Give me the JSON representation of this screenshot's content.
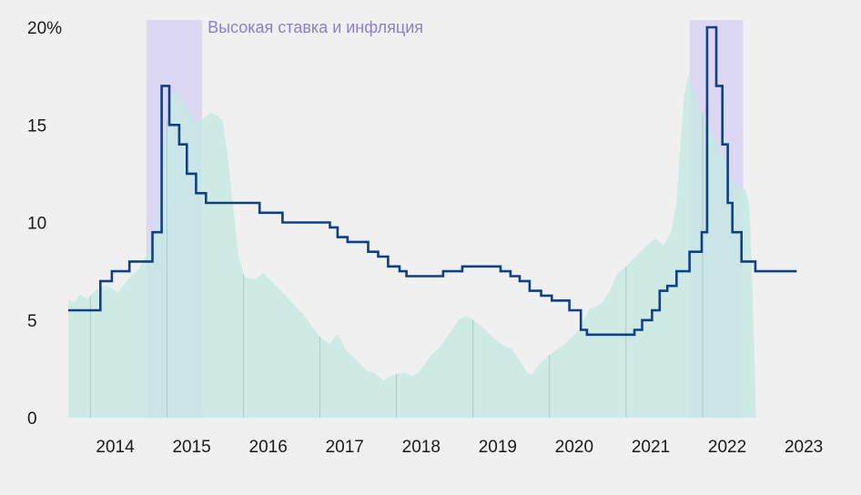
{
  "chart_data": {
    "type": "line",
    "title": "",
    "xlabel": "",
    "ylabel": "",
    "ylim": [
      0,
      20
    ],
    "xlim": [
      2013.3,
      2022.9
    ],
    "y_ticks": [
      {
        "value": 0,
        "label": "0"
      },
      {
        "value": 5,
        "label": "5"
      },
      {
        "value": 10,
        "label": "10"
      },
      {
        "value": 15,
        "label": "15"
      },
      {
        "value": 20,
        "label": "20%"
      }
    ],
    "x_ticks": [
      {
        "value": 2013.59,
        "label": "2014"
      },
      {
        "value": 2014.59,
        "label": "2015"
      },
      {
        "value": 2015.59,
        "label": "2016"
      },
      {
        "value": 2016.59,
        "label": "2017"
      },
      {
        "value": 2017.59,
        "label": "2018"
      },
      {
        "value": 2018.59,
        "label": "2019"
      },
      {
        "value": 2019.59,
        "label": "2020"
      },
      {
        "value": 2020.59,
        "label": "2021"
      },
      {
        "value": 2021.59,
        "label": "2022"
      },
      {
        "value": 2022.59,
        "label": "2023"
      }
    ],
    "grid": false,
    "highlight_color": "#dcd7f3",
    "highlight_periods": [
      {
        "start": 2014.32,
        "end": 2015.05
      },
      {
        "start": 2021.42,
        "end": 2022.12
      }
    ],
    "annotation": {
      "text": "Высокая ставка и инфляция",
      "x": 2015.05,
      "y": 20
    },
    "series": [
      {
        "kind": "area",
        "color": "#c4e9e1",
        "points": [
          [
            2013.3,
            6.1
          ],
          [
            2013.38,
            5.9
          ],
          [
            2013.45,
            6.3
          ],
          [
            2013.55,
            6.1
          ],
          [
            2013.65,
            6.5
          ],
          [
            2013.8,
            6.8
          ],
          [
            2013.95,
            6.4
          ],
          [
            2014.1,
            7.2
          ],
          [
            2014.22,
            7.6
          ],
          [
            2014.32,
            8.3
          ],
          [
            2014.42,
            9.1
          ],
          [
            2014.5,
            11.3
          ],
          [
            2014.58,
            15.0
          ],
          [
            2014.65,
            16.5
          ],
          [
            2014.72,
            16.7
          ],
          [
            2014.8,
            16.2
          ],
          [
            2014.88,
            15.6
          ],
          [
            2014.95,
            15.2
          ],
          [
            2015.05,
            15.3
          ],
          [
            2015.15,
            15.6
          ],
          [
            2015.25,
            15.5
          ],
          [
            2015.32,
            15.2
          ],
          [
            2015.38,
            13.5
          ],
          [
            2015.45,
            11.0
          ],
          [
            2015.52,
            8.4
          ],
          [
            2015.6,
            7.2
          ],
          [
            2015.75,
            7.1
          ],
          [
            2015.85,
            7.4
          ],
          [
            2015.95,
            7.0
          ],
          [
            2016.05,
            6.6
          ],
          [
            2016.2,
            6.0
          ],
          [
            2016.35,
            5.4
          ],
          [
            2016.5,
            4.6
          ],
          [
            2016.6,
            4.1
          ],
          [
            2016.72,
            3.8
          ],
          [
            2016.82,
            4.3
          ],
          [
            2016.92,
            3.5
          ],
          [
            2017.05,
            3.0
          ],
          [
            2017.2,
            2.4
          ],
          [
            2017.3,
            2.3
          ],
          [
            2017.42,
            1.9
          ],
          [
            2017.55,
            2.2
          ],
          [
            2017.7,
            2.3
          ],
          [
            2017.8,
            2.1
          ],
          [
            2017.9,
            2.4
          ],
          [
            2018.02,
            3.1
          ],
          [
            2018.15,
            3.6
          ],
          [
            2018.3,
            4.4
          ],
          [
            2018.4,
            5.0
          ],
          [
            2018.5,
            5.2
          ],
          [
            2018.6,
            5.0
          ],
          [
            2018.72,
            4.6
          ],
          [
            2018.85,
            4.1
          ],
          [
            2018.95,
            3.8
          ],
          [
            2019.1,
            3.5
          ],
          [
            2019.22,
            2.8
          ],
          [
            2019.3,
            2.3
          ],
          [
            2019.36,
            2.2
          ],
          [
            2019.45,
            2.7
          ],
          [
            2019.55,
            3.1
          ],
          [
            2019.65,
            3.4
          ],
          [
            2019.8,
            3.8
          ],
          [
            2019.95,
            4.4
          ],
          [
            2020.05,
            5.1
          ],
          [
            2020.12,
            5.6
          ],
          [
            2020.2,
            5.7
          ],
          [
            2020.28,
            5.9
          ],
          [
            2020.38,
            6.5
          ],
          [
            2020.48,
            7.4
          ],
          [
            2020.58,
            7.7
          ],
          [
            2020.68,
            8.1
          ],
          [
            2020.78,
            8.5
          ],
          [
            2020.88,
            8.9
          ],
          [
            2020.98,
            9.2
          ],
          [
            2021.08,
            8.8
          ],
          [
            2021.18,
            9.5
          ],
          [
            2021.25,
            11.0
          ],
          [
            2021.3,
            14.0
          ],
          [
            2021.35,
            16.5
          ],
          [
            2021.4,
            17.5
          ],
          [
            2021.45,
            17.0
          ],
          [
            2021.55,
            15.9
          ],
          [
            2021.65,
            15.1
          ],
          [
            2021.75,
            14.3
          ],
          [
            2021.85,
            13.4
          ],
          [
            2021.95,
            12.4
          ],
          [
            2022.02,
            11.8
          ],
          [
            2022.1,
            11.8
          ],
          [
            2022.16,
            11.6
          ],
          [
            2022.2,
            10.8
          ],
          [
            2022.24,
            7.0
          ],
          [
            2022.27,
            3.0
          ],
          [
            2022.29,
            0
          ]
        ]
      },
      {
        "kind": "step",
        "color": "#103f8a",
        "points": [
          [
            2013.3,
            5.5
          ],
          [
            2013.72,
            5.5
          ],
          [
            2013.72,
            7.0
          ],
          [
            2013.87,
            7.0
          ],
          [
            2013.87,
            7.5
          ],
          [
            2014.1,
            7.5
          ],
          [
            2014.1,
            8.0
          ],
          [
            2014.4,
            8.0
          ],
          [
            2014.4,
            9.5
          ],
          [
            2014.52,
            9.5
          ],
          [
            2014.52,
            17.0
          ],
          [
            2014.62,
            17.0
          ],
          [
            2014.62,
            15.0
          ],
          [
            2014.75,
            15.0
          ],
          [
            2014.75,
            14.0
          ],
          [
            2014.85,
            14.0
          ],
          [
            2014.85,
            12.5
          ],
          [
            2014.97,
            12.5
          ],
          [
            2014.97,
            11.5
          ],
          [
            2015.1,
            11.5
          ],
          [
            2015.1,
            11.0
          ],
          [
            2015.8,
            11.0
          ],
          [
            2015.8,
            10.5
          ],
          [
            2016.1,
            10.5
          ],
          [
            2016.1,
            10.0
          ],
          [
            2016.72,
            10.0
          ],
          [
            2016.72,
            9.75
          ],
          [
            2016.82,
            9.75
          ],
          [
            2016.82,
            9.25
          ],
          [
            2016.95,
            9.25
          ],
          [
            2016.95,
            9.0
          ],
          [
            2017.22,
            9.0
          ],
          [
            2017.22,
            8.5
          ],
          [
            2017.35,
            8.5
          ],
          [
            2017.35,
            8.25
          ],
          [
            2017.48,
            8.25
          ],
          [
            2017.48,
            7.75
          ],
          [
            2017.63,
            7.75
          ],
          [
            2017.63,
            7.5
          ],
          [
            2017.72,
            7.5
          ],
          [
            2017.72,
            7.25
          ],
          [
            2018.2,
            7.25
          ],
          [
            2018.2,
            7.5
          ],
          [
            2018.45,
            7.5
          ],
          [
            2018.45,
            7.75
          ],
          [
            2018.95,
            7.75
          ],
          [
            2018.95,
            7.5
          ],
          [
            2019.08,
            7.5
          ],
          [
            2019.08,
            7.25
          ],
          [
            2019.2,
            7.25
          ],
          [
            2019.2,
            7.0
          ],
          [
            2019.33,
            7.0
          ],
          [
            2019.33,
            6.5
          ],
          [
            2019.48,
            6.5
          ],
          [
            2019.48,
            6.25
          ],
          [
            2019.62,
            6.25
          ],
          [
            2019.62,
            6.0
          ],
          [
            2019.85,
            6.0
          ],
          [
            2019.85,
            5.5
          ],
          [
            2020.0,
            5.5
          ],
          [
            2020.0,
            4.5
          ],
          [
            2020.08,
            4.5
          ],
          [
            2020.08,
            4.25
          ],
          [
            2020.7,
            4.25
          ],
          [
            2020.7,
            4.5
          ],
          [
            2020.8,
            4.5
          ],
          [
            2020.8,
            5.0
          ],
          [
            2020.93,
            5.0
          ],
          [
            2020.93,
            5.5
          ],
          [
            2021.03,
            5.5
          ],
          [
            2021.03,
            6.5
          ],
          [
            2021.13,
            6.5
          ],
          [
            2021.13,
            6.75
          ],
          [
            2021.25,
            6.75
          ],
          [
            2021.25,
            7.5
          ],
          [
            2021.42,
            7.5
          ],
          [
            2021.42,
            8.5
          ],
          [
            2021.58,
            8.5
          ],
          [
            2021.58,
            9.5
          ],
          [
            2021.65,
            9.5
          ],
          [
            2021.65,
            20.0
          ],
          [
            2021.77,
            20.0
          ],
          [
            2021.77,
            17.0
          ],
          [
            2021.85,
            17.0
          ],
          [
            2021.85,
            14.0
          ],
          [
            2021.92,
            14.0
          ],
          [
            2021.92,
            11.0
          ],
          [
            2021.98,
            11.0
          ],
          [
            2021.98,
            9.5
          ],
          [
            2022.1,
            9.5
          ],
          [
            2022.1,
            8.0
          ],
          [
            2022.28,
            8.0
          ],
          [
            2022.28,
            7.5
          ],
          [
            2022.82,
            7.5
          ]
        ]
      }
    ]
  }
}
